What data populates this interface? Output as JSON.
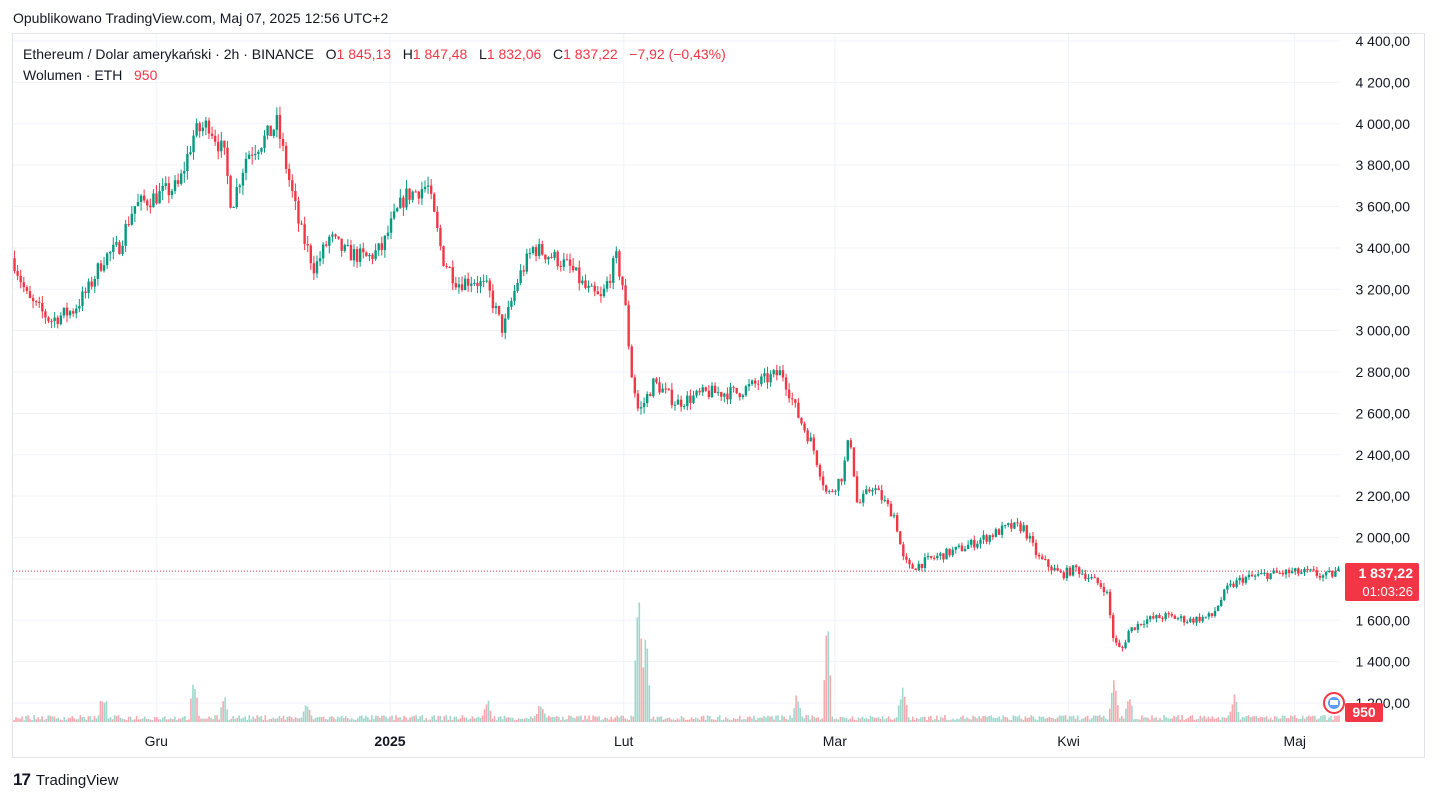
{
  "header": {
    "published": "Opublikowano TradingView.com, Maj 07, 2025 12:56 UTC+2"
  },
  "legend": {
    "symbol": "Ethereum / Dolar amerykański · 2h · BINANCE",
    "open_label": "O",
    "open": "1 845,13",
    "high_label": "H",
    "high": "1 847,48",
    "low_label": "L",
    "low": "1 832,06",
    "close_label": "C",
    "close": "1 837,22",
    "change": "−7,92 (−0,43%)",
    "volume_label": "Wolumen · ETH",
    "volume": "950"
  },
  "price_tag": {
    "price": "1 837,22",
    "countdown": "01:03:26"
  },
  "volume_tag": "950",
  "footer": {
    "brand": "TradingView"
  },
  "colors": {
    "up": "#089981",
    "down": "#f23645",
    "grid": "#f0f3fa",
    "axis_text": "#131722"
  },
  "chart_data": {
    "type": "candlestick",
    "title": "Ethereum / Dolar amerykański · 2h · BINANCE",
    "y_axis": {
      "ticks": [
        "4 400,00",
        "4 200,00",
        "4 000,00",
        "3 800,00",
        "3 600,00",
        "3 400,00",
        "3 200,00",
        "3 000,00",
        "2 800,00",
        "2 600,00",
        "2 400,00",
        "2 200,00",
        "2 000,00",
        "1 800,00",
        "1 600,00",
        "1 400,00",
        "1 200,00"
      ],
      "ylim": [
        1200,
        4400
      ]
    },
    "x_axis": {
      "ticks": [
        {
          "label": "Gru",
          "date": "2024-12-01"
        },
        {
          "label": "2025",
          "date": "2025-01-01",
          "bold": true
        },
        {
          "label": "Lut",
          "date": "2025-02-01"
        },
        {
          "label": "Mar",
          "date": "2025-03-01"
        },
        {
          "label": "Kwi",
          "date": "2025-04-01"
        },
        {
          "label": "Maj",
          "date": "2025-05-01"
        }
      ],
      "range": [
        "2024-11-12",
        "2025-05-07"
      ]
    },
    "last_price": 1837.22,
    "series": [
      {
        "price_path": [
          [
            "2024-11-12",
            3350
          ],
          [
            "2024-11-14",
            3150
          ],
          [
            "2024-11-17",
            3050
          ],
          [
            "2024-11-20",
            3100
          ],
          [
            "2024-11-22",
            3200
          ],
          [
            "2024-11-24",
            3350
          ],
          [
            "2024-11-26",
            3400
          ],
          [
            "2024-11-28",
            3600
          ],
          [
            "2024-12-01",
            3650
          ],
          [
            "2024-12-04",
            3700
          ],
          [
            "2024-12-06",
            3950
          ],
          [
            "2024-12-08",
            4000
          ],
          [
            "2024-12-10",
            3850
          ],
          [
            "2024-12-11",
            3600
          ],
          [
            "2024-12-13",
            3850
          ],
          [
            "2024-12-16",
            3950
          ],
          [
            "2024-12-17",
            4000
          ],
          [
            "2024-12-20",
            3500
          ],
          [
            "2024-12-22",
            3300
          ],
          [
            "2024-12-24",
            3450
          ],
          [
            "2024-12-26",
            3380
          ],
          [
            "2024-12-29",
            3350
          ],
          [
            "2024-12-31",
            3400
          ],
          [
            "2025-01-01",
            3500
          ],
          [
            "2025-01-03",
            3650
          ],
          [
            "2025-01-06",
            3700
          ],
          [
            "2025-01-08",
            3350
          ],
          [
            "2025-01-10",
            3230
          ],
          [
            "2025-01-12",
            3250
          ],
          [
            "2025-01-14",
            3200
          ],
          [
            "2025-01-16",
            3000
          ],
          [
            "2025-01-18",
            3250
          ],
          [
            "2025-01-20",
            3400
          ],
          [
            "2025-01-23",
            3350
          ],
          [
            "2025-01-25",
            3300
          ],
          [
            "2025-01-27",
            3200
          ],
          [
            "2025-01-29",
            3150
          ],
          [
            "2025-01-31",
            3350
          ],
          [
            "2025-02-01",
            3200
          ],
          [
            "2025-02-02",
            2800
          ],
          [
            "2025-02-03",
            2600
          ],
          [
            "2025-02-05",
            2750
          ],
          [
            "2025-02-08",
            2650
          ],
          [
            "2025-02-12",
            2700
          ],
          [
            "2025-02-16",
            2700
          ],
          [
            "2025-02-19",
            2750
          ],
          [
            "2025-02-22",
            2800
          ],
          [
            "2025-02-24",
            2600
          ],
          [
            "2025-02-26",
            2450
          ],
          [
            "2025-02-28",
            2200
          ],
          [
            "2025-03-02",
            2300
          ],
          [
            "2025-03-03",
            2500
          ],
          [
            "2025-03-04",
            2150
          ],
          [
            "2025-03-06",
            2250
          ],
          [
            "2025-03-07",
            2200
          ],
          [
            "2025-03-09",
            2100
          ],
          [
            "2025-03-10",
            1900
          ],
          [
            "2025-03-11",
            1850
          ],
          [
            "2025-03-14",
            1900
          ],
          [
            "2025-03-18",
            1950
          ],
          [
            "2025-03-21",
            2000
          ],
          [
            "2025-03-24",
            2050
          ],
          [
            "2025-03-26",
            2050
          ],
          [
            "2025-03-28",
            1900
          ],
          [
            "2025-03-31",
            1820
          ],
          [
            "2025-04-02",
            1850
          ],
          [
            "2025-04-04",
            1800
          ],
          [
            "2025-04-06",
            1750
          ],
          [
            "2025-04-07",
            1500
          ],
          [
            "2025-04-08",
            1450
          ],
          [
            "2025-04-09",
            1550
          ],
          [
            "2025-04-11",
            1600
          ],
          [
            "2025-04-14",
            1620
          ],
          [
            "2025-04-17",
            1600
          ],
          [
            "2025-04-20",
            1620
          ],
          [
            "2025-04-22",
            1750
          ],
          [
            "2025-04-24",
            1800
          ],
          [
            "2025-04-27",
            1820
          ],
          [
            "2025-04-30",
            1830
          ],
          [
            "2025-05-03",
            1830
          ],
          [
            "2025-05-05",
            1810
          ],
          [
            "2025-05-07",
            1837
          ]
        ]
      }
    ],
    "volume": {
      "label": "Wolumen · ETH",
      "last": 950,
      "spikes": [
        [
          "2024-11-24",
          420
        ],
        [
          "2024-12-06",
          500
        ],
        [
          "2024-12-10",
          400
        ],
        [
          "2024-12-21",
          280
        ],
        [
          "2025-01-14",
          300
        ],
        [
          "2025-01-21",
          260
        ],
        [
          "2025-02-03",
          1950
        ],
        [
          "2025-02-04",
          1100
        ],
        [
          "2025-02-24",
          400
        ],
        [
          "2025-02-28",
          1300
        ],
        [
          "2025-03-10",
          500
        ],
        [
          "2025-04-07",
          500
        ],
        [
          "2025-04-09",
          380
        ],
        [
          "2025-04-23",
          380
        ]
      ]
    }
  }
}
